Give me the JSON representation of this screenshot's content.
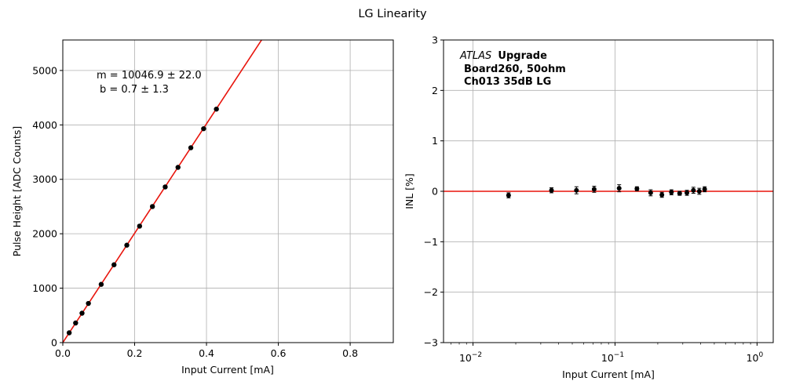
{
  "figure": {
    "title": "LG Linearity"
  },
  "chart_data": [
    {
      "type": "scatter",
      "xlabel": "Input Current [mA]",
      "ylabel": "Pulse Height [ADC Counts]",
      "xlim": [
        0,
        0.92
      ],
      "ylim": [
        0,
        5560
      ],
      "xticks": [
        0.0,
        0.2,
        0.4,
        0.6,
        0.8
      ],
      "xtick_labels": [
        "0.0",
        "0.2",
        "0.4",
        "0.6",
        "0.8"
      ],
      "yticks": [
        0,
        1000,
        2000,
        3000,
        4000,
        5000
      ],
      "ytick_labels": [
        "0",
        "1000",
        "2000",
        "3000",
        "4000",
        "5000"
      ],
      "grid": true,
      "fit": {
        "slope": 10046.9,
        "intercept": 0.7,
        "color": "#e8140c"
      },
      "annotation": {
        "line1": "m = 10046.9 ± 22.0",
        "line2": "b = 0.7 ± 1.3"
      },
      "point_color": "#000000",
      "x": [
        0.0178,
        0.0357,
        0.0535,
        0.0713,
        0.1069,
        0.1426,
        0.1782,
        0.2138,
        0.2495,
        0.2851,
        0.3207,
        0.3564,
        0.392,
        0.4276
      ],
      "y": [
        180,
        360,
        540,
        720,
        1070,
        1430,
        1790,
        2140,
        2500,
        2860,
        3220,
        3580,
        3930,
        4290
      ]
    },
    {
      "type": "scatter",
      "xscale": "log",
      "xlabel": "Input Current [mA]",
      "ylabel": "INL [%]",
      "xlim": [
        0.0062,
        1.3
      ],
      "ylim": [
        -3,
        3
      ],
      "xticks": [
        0.01,
        0.1,
        1
      ],
      "xtick_labels": [
        "10",
        "10",
        "10"
      ],
      "xtick_exponents": [
        "−2",
        "−1",
        "0"
      ],
      "yticks": [
        -3,
        -2,
        -1,
        0,
        1,
        2,
        3
      ],
      "ytick_labels": [
        "−3",
        "−2",
        "−1",
        "0",
        "1",
        "2",
        "3"
      ],
      "grid": true,
      "reference_line": {
        "y": 0,
        "color": "#e8140c"
      },
      "label": {
        "atlas": "ATLAS",
        "upgrade": "Upgrade",
        "board": "Board260, 50ohm",
        "channel": "Ch013 35dB LG"
      },
      "point_color": "#000000",
      "x": [
        0.0178,
        0.0357,
        0.0535,
        0.0713,
        0.1069,
        0.1426,
        0.1782,
        0.2138,
        0.2495,
        0.2851,
        0.3207,
        0.3564,
        0.392,
        0.4276
      ],
      "y": [
        -0.08,
        0.02,
        0.02,
        0.04,
        0.06,
        0.05,
        -0.03,
        -0.07,
        -0.02,
        -0.04,
        -0.03,
        0.02,
        0.0,
        0.04
      ],
      "yerr": [
        0.05,
        0.05,
        0.07,
        0.06,
        0.07,
        0.04,
        0.06,
        0.05,
        0.05,
        0.04,
        0.05,
        0.06,
        0.06,
        0.05
      ]
    }
  ]
}
